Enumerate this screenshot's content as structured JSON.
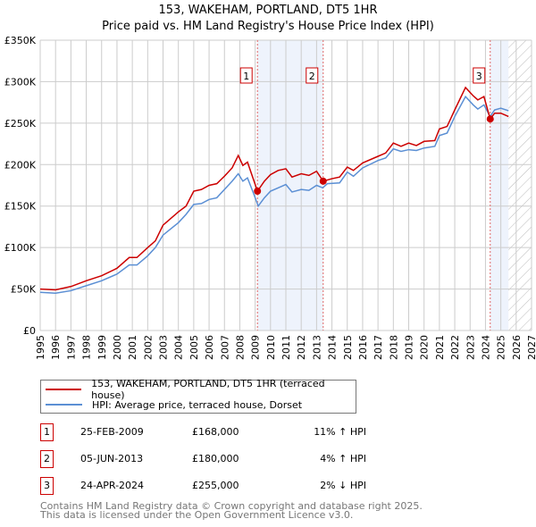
{
  "chart_data": {
    "type": "line",
    "title": "153, WAKEHAM, PORTLAND, DT5 1HR",
    "subtitle": "Price paid vs. HM Land Registry's House Price Index (HPI)",
    "xlim": [
      1995,
      2027
    ],
    "ylim": [
      0,
      350000
    ],
    "y_ticks": [
      {
        "v": 0,
        "label": "£0"
      },
      {
        "v": 50000,
        "label": "£50K"
      },
      {
        "v": 100000,
        "label": "£100K"
      },
      {
        "v": 150000,
        "label": "£150K"
      },
      {
        "v": 200000,
        "label": "£200K"
      },
      {
        "v": 250000,
        "label": "£250K"
      },
      {
        "v": 300000,
        "label": "£300K"
      },
      {
        "v": 350000,
        "label": "£350K"
      }
    ],
    "x_ticks": [
      1995,
      1996,
      1997,
      1998,
      1999,
      2000,
      2001,
      2002,
      2003,
      2004,
      2005,
      2006,
      2007,
      2008,
      2009,
      2010,
      2011,
      2012,
      2013,
      2014,
      2015,
      2016,
      2017,
      2018,
      2019,
      2020,
      2021,
      2022,
      2023,
      2024,
      2025,
      2026,
      2027
    ],
    "grid": true,
    "shaded_periods": [
      [
        2009.15,
        2013.43
      ],
      [
        2024.31,
        2025.5
      ]
    ],
    "forecast_hatch_from": 2025.5,
    "series": [
      {
        "name": "153, WAKEHAM, PORTLAND, DT5 1HR (terraced house)",
        "color": "#cc0000",
        "x": [
          1995,
          1996,
          1997,
          1998,
          1999,
          2000,
          2000.8,
          2001.3,
          2002,
          2002.5,
          2003,
          2004,
          2004.5,
          2005,
          2005.5,
          2006,
          2006.5,
          2007,
          2007.5,
          2007.9,
          2008.2,
          2008.5,
          2009.15,
          2009.6,
          2010,
          2010.5,
          2011,
          2011.4,
          2012,
          2012.5,
          2013,
          2013.43,
          2014,
          2014.5,
          2015,
          2015.4,
          2016,
          2017,
          2017.5,
          2018,
          2018.5,
          2019,
          2019.5,
          2020,
          2020.7,
          2021,
          2021.5,
          2022,
          2022.7,
          2023.2,
          2023.5,
          2023.9,
          2024.31,
          2024.6,
          2025,
          2025.5
        ],
        "y": [
          50000,
          49000,
          53000,
          60000,
          66000,
          75000,
          88000,
          88000,
          100000,
          108000,
          127000,
          143000,
          150000,
          168000,
          170000,
          175000,
          177000,
          186000,
          196000,
          211000,
          199000,
          203000,
          168000,
          180000,
          188000,
          193000,
          195000,
          185000,
          189000,
          187000,
          192000,
          180000,
          183000,
          185000,
          197000,
          193000,
          202000,
          210000,
          214000,
          226000,
          222000,
          226000,
          223000,
          228000,
          229000,
          243000,
          246000,
          266000,
          293000,
          283000,
          278000,
          282000,
          255000,
          262000,
          262000,
          258000
        ]
      },
      {
        "name": "HPI: Average price, terraced house, Dorset",
        "color": "#5b8fd4",
        "x": [
          1995,
          1995.5,
          1996,
          1997,
          1998,
          1999,
          2000,
          2000.8,
          2001.3,
          2002,
          2002.5,
          2003,
          2004,
          2004.5,
          2005,
          2005.5,
          2006,
          2006.5,
          2007,
          2007.5,
          2007.9,
          2008.2,
          2008.5,
          2008.9,
          2009.2,
          2009.6,
          2010,
          2010.5,
          2011,
          2011.4,
          2012,
          2012.5,
          2013,
          2013.4,
          2013.7,
          2014.5,
          2015,
          2015.4,
          2016,
          2017,
          2017.5,
          2018,
          2018.5,
          2019,
          2019.5,
          2020,
          2020.7,
          2021,
          2021.5,
          2022,
          2022.7,
          2023.2,
          2023.5,
          2023.9,
          2024.3,
          2024.6,
          2025,
          2025.5
        ],
        "y": [
          46000,
          45500,
          45000,
          48000,
          54000,
          60000,
          68000,
          79000,
          79000,
          90000,
          100000,
          115000,
          130000,
          140000,
          152000,
          153000,
          158000,
          160000,
          170000,
          180000,
          189000,
          180000,
          184000,
          165000,
          150000,
          160000,
          168000,
          172000,
          176000,
          167000,
          170000,
          169000,
          175000,
          172000,
          177000,
          178000,
          191000,
          186000,
          196000,
          205000,
          208000,
          219000,
          216000,
          218000,
          217000,
          220000,
          222000,
          235000,
          238000,
          258000,
          282000,
          272000,
          267000,
          272000,
          258000,
          266000,
          268000,
          265000
        ]
      }
    ],
    "sales": [
      {
        "n": "1",
        "x": 2009.15,
        "y": 168000,
        "date": "25-FEB-2009",
        "price": "£168,000",
        "hpi": "11% ↑ HPI"
      },
      {
        "n": "2",
        "x": 2013.43,
        "y": 180000,
        "date": "05-JUN-2013",
        "price": "£180,000",
        "hpi": "4% ↑ HPI"
      },
      {
        "n": "3",
        "x": 2024.31,
        "y": 255000,
        "date": "24-APR-2024",
        "price": "£255,000",
        "hpi": "2% ↓ HPI"
      }
    ]
  },
  "footer": {
    "line1": "Contains HM Land Registry data © Crown copyright and database right 2025.",
    "line2": "This data is licensed under the Open Government Licence v3.0."
  }
}
